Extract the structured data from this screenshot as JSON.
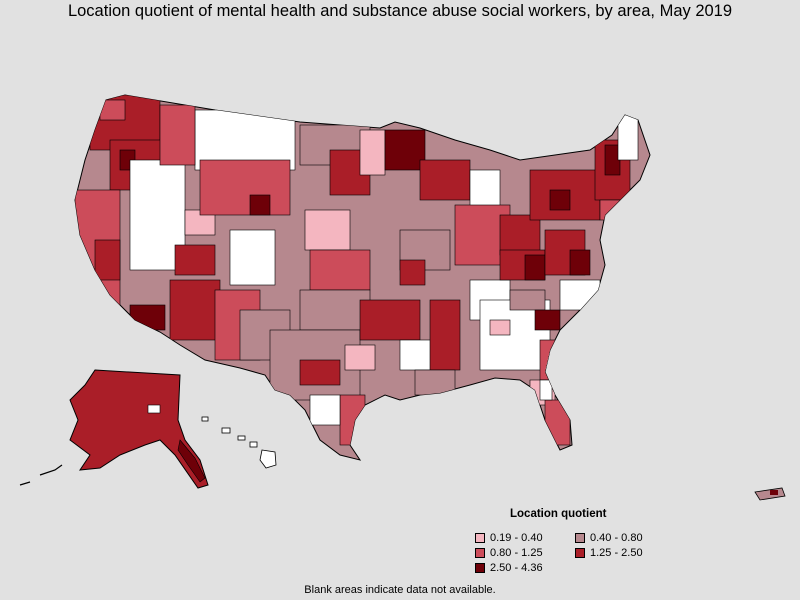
{
  "title": "Location quotient of mental health and substance abuse social workers, by area, May 2019",
  "legend": {
    "title": "Location quotient",
    "items": [
      {
        "label": "0.19 - 0.40",
        "color": "#f4b6c0"
      },
      {
        "label": "0.40 - 0.80",
        "color": "#b6888e"
      },
      {
        "label": "0.80 - 1.25",
        "color": "#cc4c5a"
      },
      {
        "label": "1.25 - 2.50",
        "color": "#aa1e28"
      },
      {
        "label": "2.50 - 4.36",
        "color": "#6e0008"
      }
    ]
  },
  "footnote": "Blank areas indicate data not available.",
  "colors": {
    "background": "#e1e1e1",
    "no_data": "#ffffff",
    "border": "#000000"
  }
}
